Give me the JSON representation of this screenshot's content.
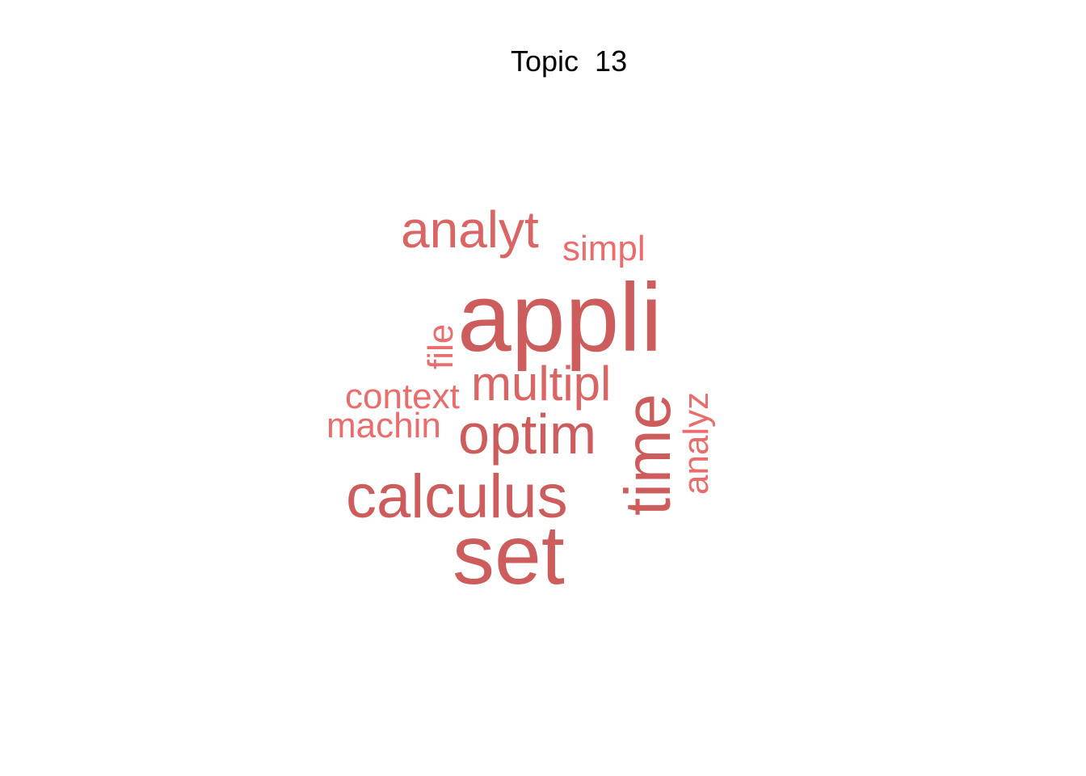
{
  "title": "Topic  13",
  "colors": {
    "strong": "#cd5c5c",
    "medium": "#d96565",
    "light": "#ea6d6d"
  },
  "words": [
    {
      "text": "appli",
      "color": "strong"
    },
    {
      "text": "set",
      "color": "strong"
    },
    {
      "text": "calculus",
      "color": "strong"
    },
    {
      "text": "time",
      "color": "strong"
    },
    {
      "text": "optim",
      "color": "strong"
    },
    {
      "text": "multipl",
      "color": "medium"
    },
    {
      "text": "analyt",
      "color": "medium"
    },
    {
      "text": "file",
      "color": "light"
    },
    {
      "text": "context",
      "color": "light"
    },
    {
      "text": "machin",
      "color": "light"
    },
    {
      "text": "simpl",
      "color": "light"
    },
    {
      "text": "analyz",
      "color": "light"
    }
  ]
}
